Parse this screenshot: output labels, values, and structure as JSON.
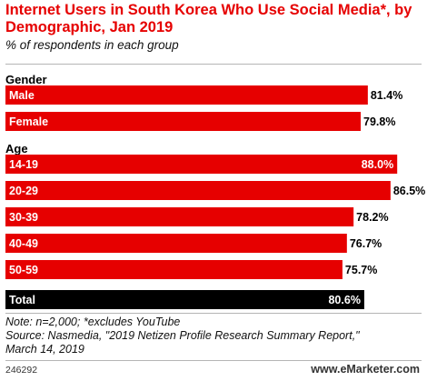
{
  "title": "Internet Users in South Korea Who Use Social Media*, by Demographic, Jan 2019",
  "subtitle": "% of respondents in each group",
  "colors": {
    "accent": "#e60000",
    "total": "#000000",
    "bar_text": "#ffffff",
    "value_text": "#000000"
  },
  "chart_data": {
    "type": "bar",
    "orientation": "horizontal",
    "title": "Internet Users in South Korea Who Use Social Media*, by Demographic, Jan 2019",
    "subtitle": "% of respondents in each group",
    "xlim": [
      0,
      100
    ],
    "grid": false,
    "groups": [
      {
        "label": "Gender",
        "bars": [
          {
            "category": "Male",
            "value": 81.4,
            "value_label": "81.4%"
          },
          {
            "category": "Female",
            "value": 79.8,
            "value_label": "79.8%"
          }
        ]
      },
      {
        "label": "Age",
        "bars": [
          {
            "category": "14-19",
            "value": 88.0,
            "value_label": "88.0%"
          },
          {
            "category": "20-29",
            "value": 86.5,
            "value_label": "86.5%"
          },
          {
            "category": "30-39",
            "value": 78.2,
            "value_label": "78.2%"
          },
          {
            "category": "40-49",
            "value": 76.7,
            "value_label": "76.7%"
          },
          {
            "category": "50-59",
            "value": 75.7,
            "value_label": "75.7%"
          }
        ]
      },
      {
        "label": "",
        "bars": [
          {
            "category": "Total",
            "value": 80.6,
            "value_label": "80.6%",
            "highlight": true
          }
        ]
      }
    ]
  },
  "notes": [
    "Note: n=2,000; *excludes YouTube",
    "Source: Nasmedia, \"2019 Netizen Profile Research Summary Report,\"",
    "March 14, 2019"
  ],
  "footer": {
    "code": "246292",
    "brand": "www.eMarketer.com"
  }
}
